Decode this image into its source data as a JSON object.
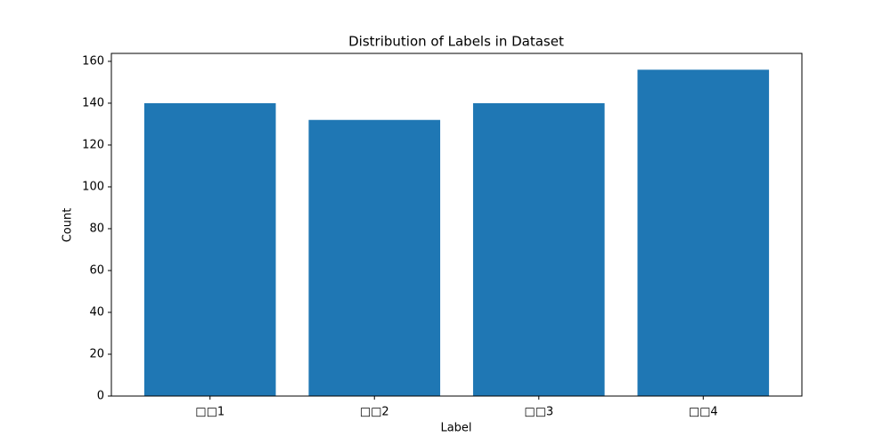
{
  "chart_data": {
    "type": "bar",
    "title": "Distribution of Labels in Dataset",
    "x_label": "Label",
    "y_label": "Count",
    "categories": [
      "□□1",
      "□□2",
      "□□3",
      "□□4"
    ],
    "values": [
      140,
      132,
      140,
      156
    ],
    "color": "#1f77b4",
    "ylim": [
      0,
      163.8
    ],
    "yticks": [
      0,
      20,
      40,
      60,
      80,
      100,
      120,
      140,
      160
    ],
    "grid": false
  }
}
